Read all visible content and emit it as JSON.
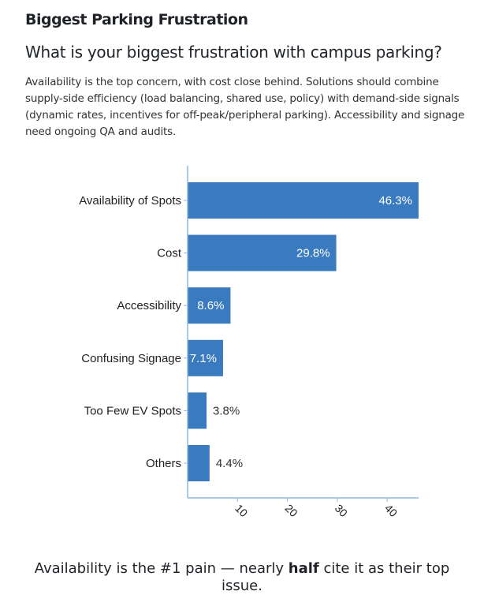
{
  "header": {
    "title": "Biggest Parking Frustration",
    "question": "What is your biggest frustration with campus parking?",
    "description": "Availability is the top concern, with cost close behind. Solutions should combine supply-side efficiency (load balancing, shared use, policy) with demand-side signals (dynamic rates, incentives for off-peak/peripheral parking). Accessibility and signage need ongoing QA and audits."
  },
  "chart_data": {
    "type": "bar",
    "orientation": "horizontal",
    "categories": [
      "Availability of Spots",
      "Cost",
      "Accessibility",
      "Confusing Signage",
      "Too Few EV Spots",
      "Others"
    ],
    "values": [
      46.3,
      29.8,
      8.6,
      7.1,
      3.8,
      4.4
    ],
    "data_labels": [
      "46.3%",
      "29.8%",
      "8.6%",
      "7.1%",
      "3.8%",
      "4.4%"
    ],
    "xticks": [
      10,
      20,
      30,
      40
    ],
    "xlim": [
      0,
      46.3
    ],
    "grid": false,
    "bar_color": "#3a7bbf",
    "axis_color": "#8fb8de"
  },
  "footer": {
    "pre": "Availability is the #1 pain — nearly ",
    "bold": "half",
    "post": " cite it as their top issue."
  }
}
